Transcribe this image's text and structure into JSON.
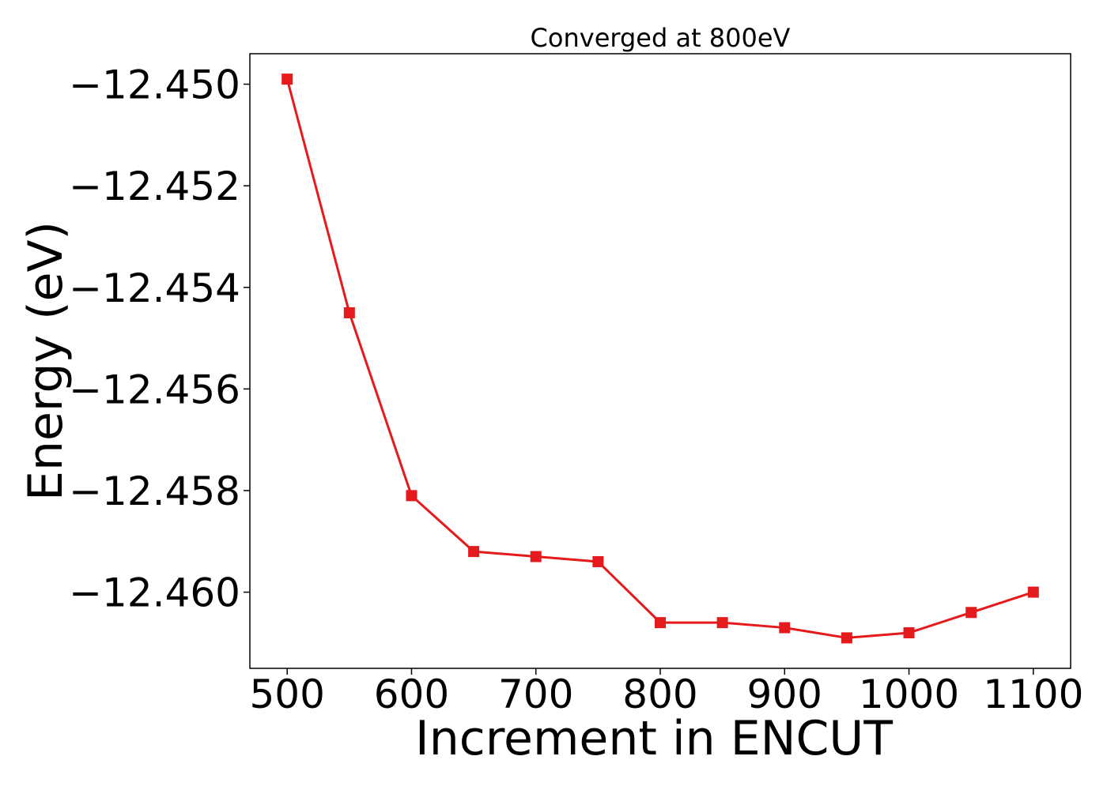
{
  "chart_data": {
    "type": "line",
    "title": "Converged at 800eV",
    "xlabel": "Increment in ENCUT",
    "ylabel": "Energy (eV)",
    "xlim": [
      470,
      1130
    ],
    "ylim": [
      -12.4615,
      -12.4494
    ],
    "x_ticks": [
      500,
      600,
      700,
      800,
      900,
      1000,
      1100
    ],
    "y_ticks": [
      -12.46,
      -12.458,
      -12.456,
      -12.454,
      -12.452,
      -12.45
    ],
    "y_tick_labels": [
      "−12.460",
      "−12.458",
      "−12.456",
      "−12.454",
      "−12.452",
      "−12.450"
    ],
    "grid": false,
    "series": [
      {
        "color": "#e41a1c",
        "marker": "square",
        "x": [
          500,
          550,
          600,
          650,
          700,
          750,
          800,
          850,
          900,
          950,
          1000,
          1050,
          1100
        ],
        "y": [
          -12.4499,
          -12.4545,
          -12.4581,
          -12.4592,
          -12.4593,
          -12.4594,
          -12.4606,
          -12.4606,
          -12.4607,
          -12.4609,
          -12.4608,
          -12.4604,
          -12.46
        ]
      }
    ]
  }
}
